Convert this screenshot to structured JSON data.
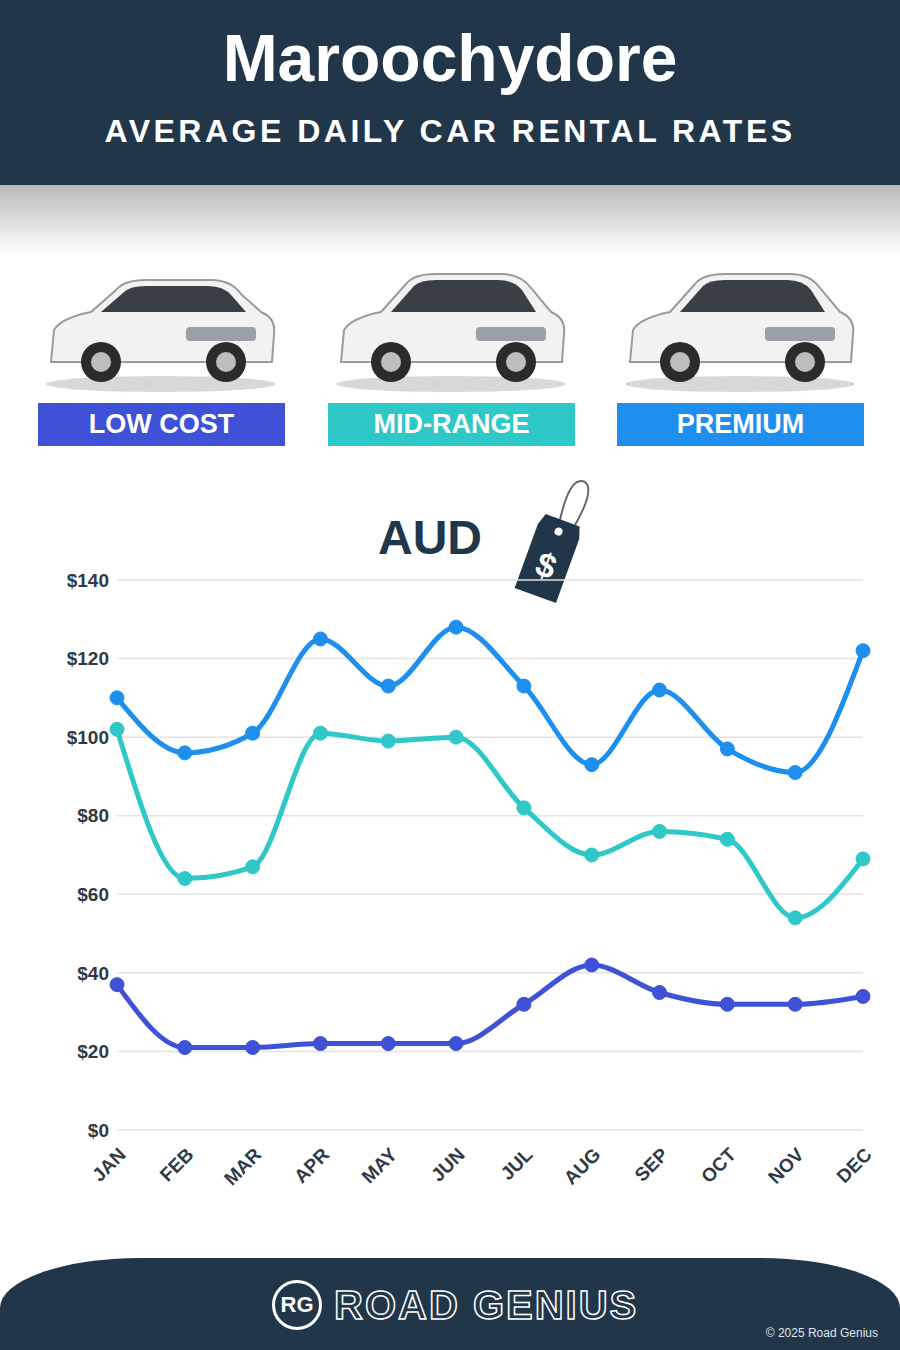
{
  "chart_data": {
    "type": "line",
    "title": "Maroochydore",
    "subtitle": "AVERAGE DAILY CAR RENTAL RATES",
    "unit_label": "AUD",
    "tag_symbol": "$",
    "categories": [
      "JAN",
      "FEB",
      "MAR",
      "APR",
      "MAY",
      "JUN",
      "JUL",
      "AUG",
      "SEP",
      "OCT",
      "NOV",
      "DEC"
    ],
    "series": [
      {
        "name": "LOW COST",
        "color": "#3f51d6",
        "values": [
          37,
          21,
          21,
          22,
          22,
          22,
          32,
          42,
          35,
          32,
          32,
          34
        ]
      },
      {
        "name": "MID-RANGE",
        "color": "#2ec8c8",
        "values": [
          102,
          64,
          67,
          101,
          99,
          100,
          82,
          70,
          76,
          74,
          54,
          69
        ]
      },
      {
        "name": "PREMIUM",
        "color": "#1e8fef",
        "values": [
          110,
          96,
          101,
          125,
          113,
          128,
          113,
          93,
          112,
          97,
          91,
          122
        ]
      }
    ],
    "ylim": [
      0,
      140
    ],
    "yticks": [
      {
        "value": 0,
        "label": "$0"
      },
      {
        "value": 20,
        "label": "$20"
      },
      {
        "value": 40,
        "label": "$40"
      },
      {
        "value": 60,
        "label": "$60"
      },
      {
        "value": 80,
        "label": "$80"
      },
      {
        "value": 100,
        "label": "$100"
      },
      {
        "value": 120,
        "label": "$120"
      },
      {
        "value": 140,
        "label": "$140"
      }
    ],
    "grid": true,
    "marker": "circle",
    "brand": "ROAD GENIUS",
    "logo": "RG",
    "copyright": "© 2025 Road Genius"
  }
}
